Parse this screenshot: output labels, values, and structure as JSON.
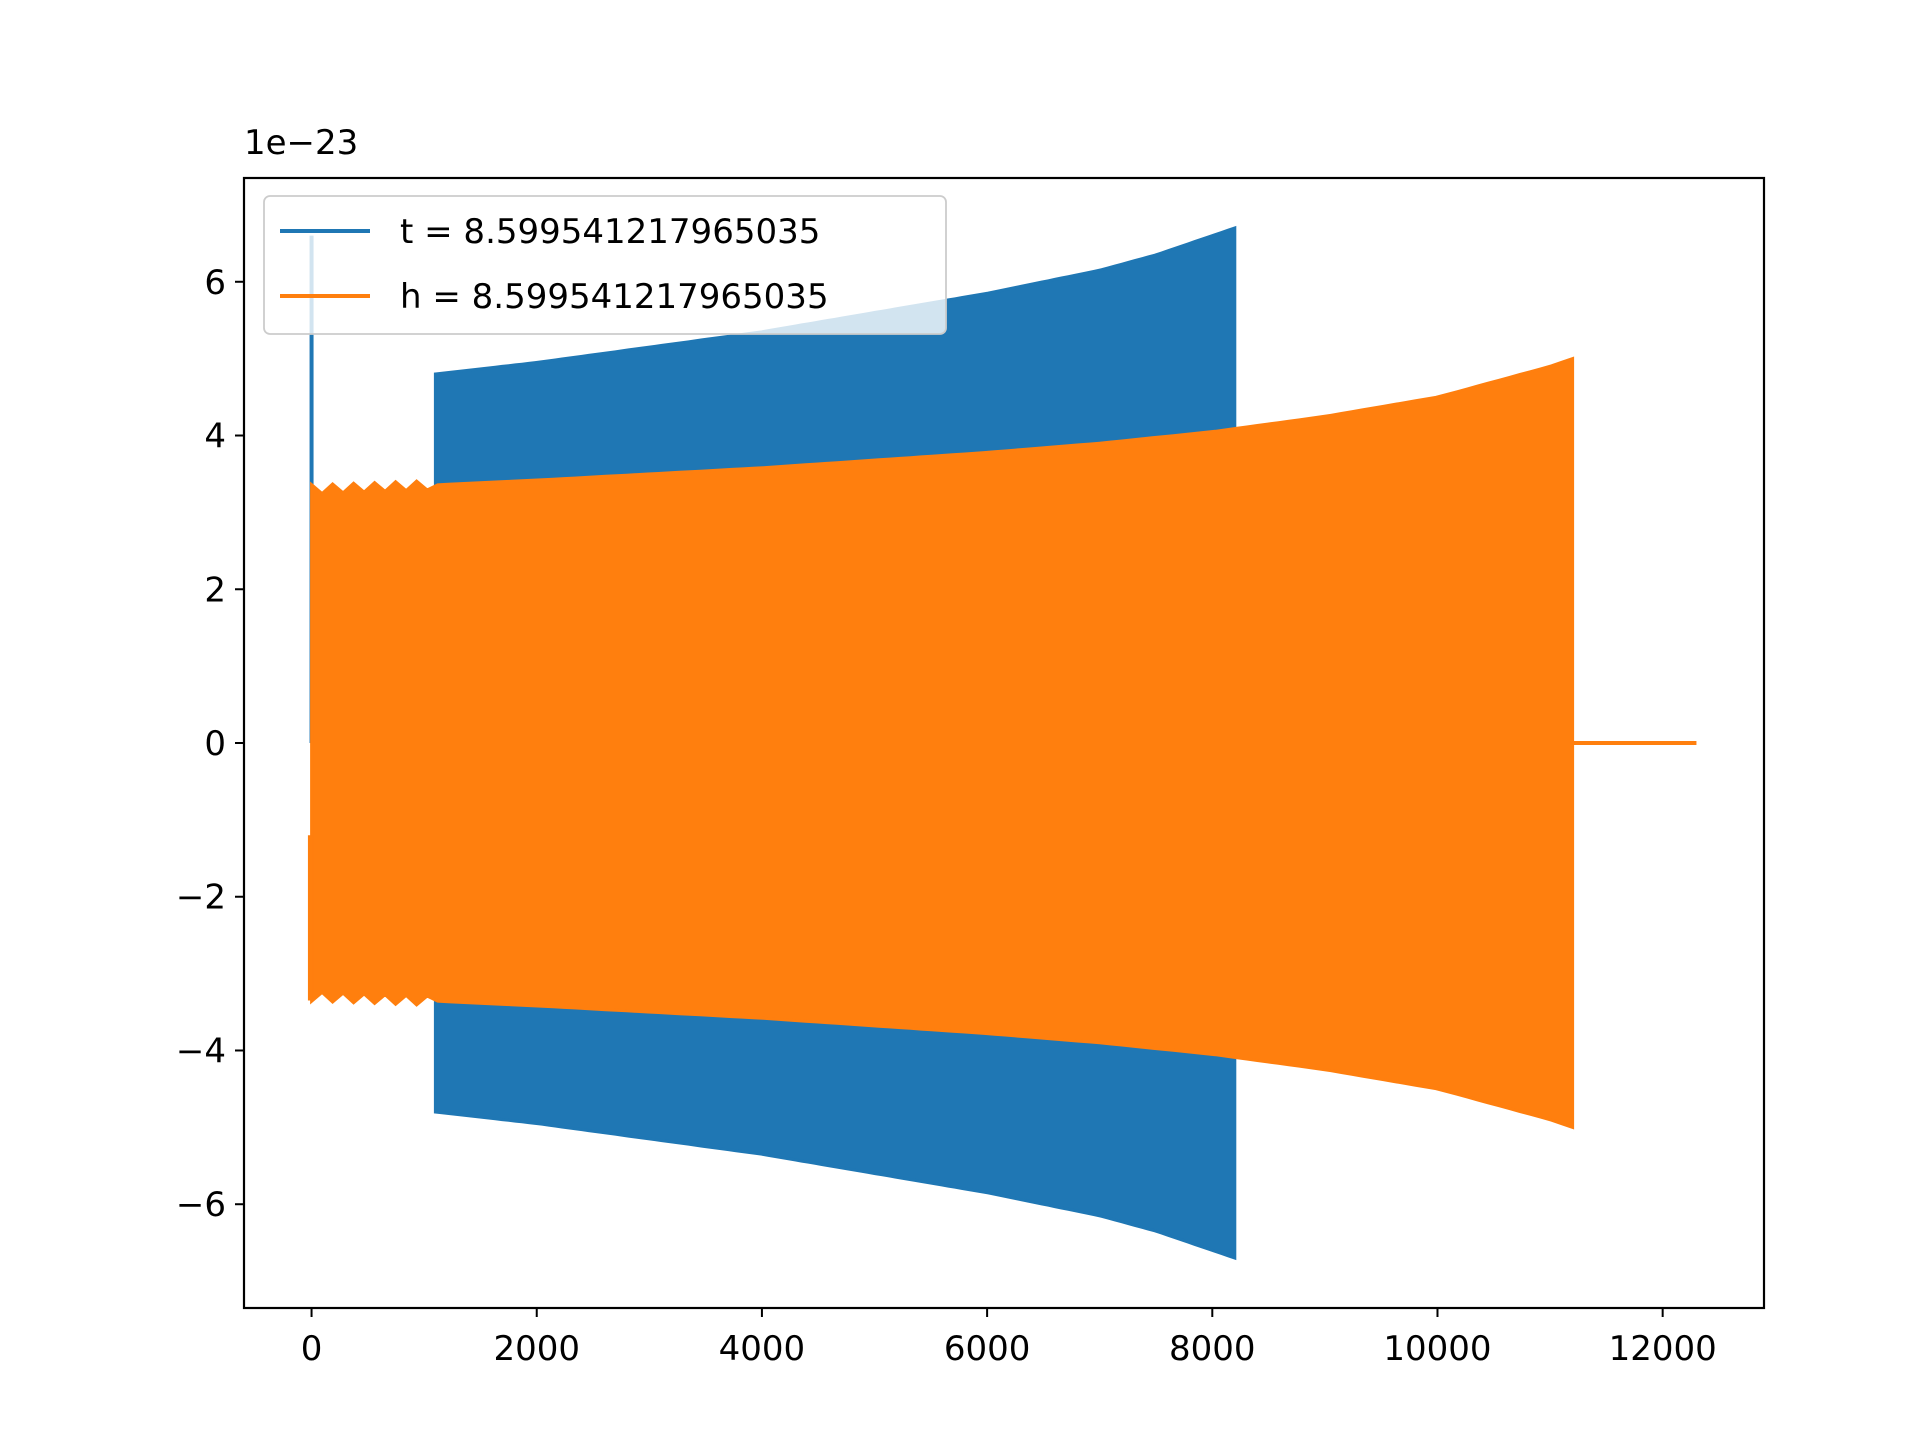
{
  "chart_data": {
    "type": "line",
    "title": "",
    "xlabel": "",
    "ylabel": "",
    "y_offset_label": "1e−23",
    "xlim": [
      -600,
      12900
    ],
    "ylim": [
      -7.35,
      7.35
    ],
    "xticks": [
      0,
      2000,
      4000,
      6000,
      8000,
      10000,
      12000
    ],
    "xtick_labels": [
      "0",
      "2000",
      "4000",
      "6000",
      "8000",
      "10000",
      "12000"
    ],
    "yticks": [
      -6,
      -4,
      -2,
      0,
      2,
      4,
      6
    ],
    "ytick_labels": [
      "−6",
      "−4",
      "−2",
      "0",
      "2",
      "4",
      "6"
    ],
    "grid": false,
    "legend_position": "top-left",
    "series": [
      {
        "name": "t = 8.599541217965035",
        "color": "#1f77b4",
        "description": "oscillating chirp; spike to ~6.6 at x=0, zero until ~1100, envelope grows from 4.8 at 1100 to 6.7 at 8200, then ends",
        "envelope": {
          "x": [
            1100,
            2000,
            3000,
            4000,
            5000,
            6000,
            7000,
            7500,
            8000,
            8200
          ],
          "upper": [
            4.8,
            4.95,
            5.15,
            5.35,
            5.6,
            5.85,
            6.15,
            6.35,
            6.6,
            6.7
          ],
          "lower": [
            -4.8,
            -4.95,
            -5.15,
            -5.35,
            -5.6,
            -5.85,
            -6.15,
            -6.35,
            -6.6,
            -6.7
          ]
        },
        "spike": {
          "x": 0,
          "y": 6.6
        }
      },
      {
        "name": "h = 8.599541217965035",
        "color": "#ff7f0e",
        "description": "oscillating chirp from 0 to ~11200 with envelope growing from 3.3 to 5.0, then flat zero to ~12300",
        "envelope": {
          "x": [
            0,
            1000,
            2000,
            3000,
            4000,
            5000,
            6000,
            7000,
            8000,
            9000,
            10000,
            11000,
            11200
          ],
          "upper": [
            3.3,
            3.35,
            3.42,
            3.5,
            3.58,
            3.68,
            3.78,
            3.9,
            4.05,
            4.25,
            4.5,
            4.9,
            5.0
          ],
          "lower": [
            -3.3,
            -3.35,
            -3.42,
            -3.5,
            -3.58,
            -3.68,
            -3.78,
            -3.9,
            -4.05,
            -4.25,
            -4.5,
            -4.9,
            -5.0
          ]
        },
        "tail": {
          "x_start": 11200,
          "x_end": 12300,
          "y": 0
        }
      }
    ]
  }
}
